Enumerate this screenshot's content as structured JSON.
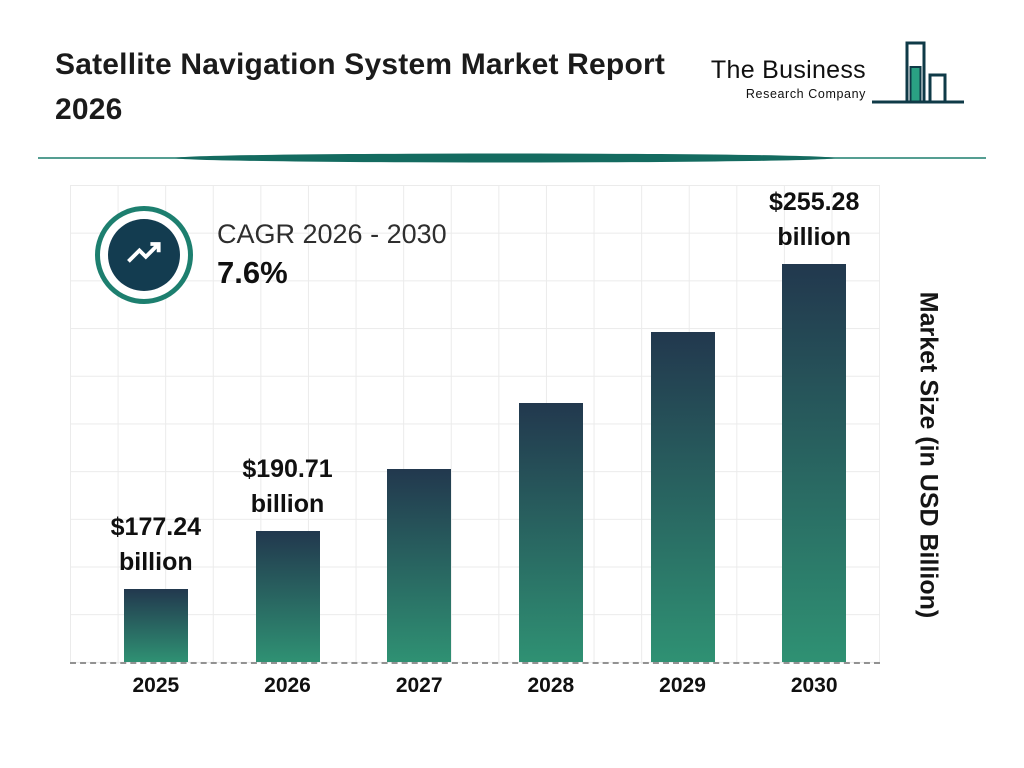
{
  "header": {
    "title": "Satellite Navigation System Market Report 2026",
    "logo": {
      "line1": "The Business",
      "line2": "Research Company"
    }
  },
  "cagr": {
    "label": "CAGR 2026 - 2030",
    "value": "7.6%"
  },
  "chart_data": {
    "type": "bar",
    "title": "Satellite Navigation System Market Report 2026",
    "ylabel": "Market Size (in USD Billion)",
    "categories": [
      "2025",
      "2026",
      "2027",
      "2028",
      "2029",
      "2030"
    ],
    "values": [
      177.24,
      190.71,
      205.2,
      220.8,
      237.6,
      255.28
    ],
    "ylim": [
      160,
      272
    ],
    "grid": true,
    "legend": "none",
    "bars": [
      {
        "year": "2025",
        "value": 177.24,
        "label_amount": "$177.24",
        "label_unit": "billion"
      },
      {
        "year": "2026",
        "value": 190.71,
        "label_amount": "$190.71",
        "label_unit": "billion"
      },
      {
        "year": "2027",
        "value": 205.2
      },
      {
        "year": "2028",
        "value": 220.8
      },
      {
        "year": "2029",
        "value": 237.6
      },
      {
        "year": "2030",
        "value": 255.28,
        "label_amount": "$255.28",
        "label_unit": "billion"
      }
    ]
  },
  "colors": {
    "teal_accent": "#1d7f6f",
    "divider_lens": "#146b60",
    "dark_circle": "#133c50",
    "bar_top": "#22384e",
    "bar_bottom": "#2f9173",
    "grid": "#ebebeb",
    "text_dark": "#101010"
  }
}
